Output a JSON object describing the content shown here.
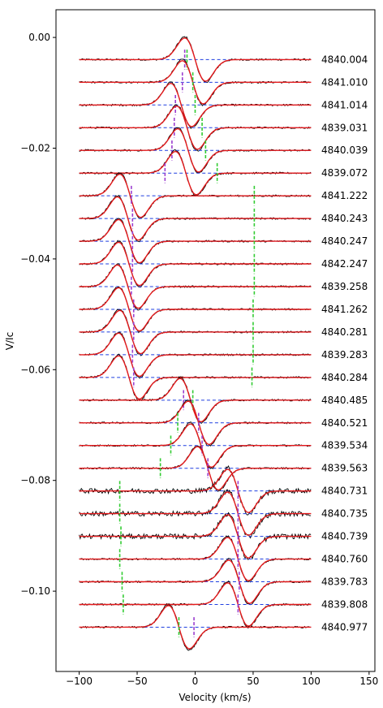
{
  "chart_data": {
    "type": "line",
    "title": "",
    "xlabel": "Velocity (km/s)",
    "ylabel": "V/Ic",
    "xlim": [
      -120,
      155
    ],
    "ylim": [
      -0.1145,
      0.005
    ],
    "xticks": [
      -100,
      -50,
      0,
      50,
      100,
      150
    ],
    "xtick_labels": [
      "−100",
      "−50",
      "0",
      "50",
      "100",
      "150"
    ],
    "yticks": [
      0.0,
      -0.02,
      -0.04,
      -0.06,
      -0.08,
      -0.1
    ],
    "ytick_labels": [
      "0.00",
      "−0.02",
      "−0.04",
      "−0.06",
      "−0.08",
      "−0.10"
    ],
    "grid": false,
    "legend": "none",
    "velocity_range": [
      -100,
      100
    ],
    "colors": {
      "observed": "#000000",
      "model": "#e41a1c",
      "zero_level": "#1f3fe0",
      "marker_green": "#33cc33",
      "marker_purple": "#9b3fd0"
    },
    "series": [
      {
        "label": "4840.004",
        "offset": -0.004,
        "center": 0,
        "amplitude": 0.0041,
        "noise": 0.00016,
        "markers": {
          "green": -7,
          "purple": -9
        }
      },
      {
        "label": "4841.010",
        "offset": -0.0081,
        "center": -2,
        "amplitude": 0.0041,
        "noise": 0.00016,
        "markers": {
          "green": -2,
          "purple": -11
        }
      },
      {
        "label": "4841.014",
        "offset": -0.0122,
        "center": -12,
        "amplitude": 0.0041,
        "noise": 0.00016,
        "markers": {
          "green": 0,
          "purple": -17
        }
      },
      {
        "label": "4839.031",
        "offset": -0.0163,
        "center": -7,
        "amplitude": 0.0041,
        "noise": 0.00016,
        "markers": {
          "green": 6,
          "purple": -18
        }
      },
      {
        "label": "4840.039",
        "offset": -0.0204,
        "center": -6,
        "amplitude": 0.0041,
        "noise": 0.00016,
        "markers": {
          "green": 9,
          "purple": -20
        }
      },
      {
        "label": "4839.072",
        "offset": -0.0245,
        "center": -8,
        "amplitude": 0.0041,
        "noise": 0.00016,
        "markers": {
          "green": 19,
          "purple": -26
        }
      },
      {
        "label": "4841.222",
        "offset": -0.0286,
        "center": -56,
        "amplitude": 0.0041,
        "noise": 0.00016,
        "markers": {
          "green": 51,
          "purple": -55
        }
      },
      {
        "label": "4840.243",
        "offset": -0.0327,
        "center": -58,
        "amplitude": 0.0041,
        "noise": 0.00016,
        "markers": {
          "green": 51,
          "purple": -54
        }
      },
      {
        "label": "4840.247",
        "offset": -0.0368,
        "center": -57,
        "amplitude": 0.0041,
        "noise": 0.00016,
        "markers": {
          "green": 51,
          "purple": -54
        }
      },
      {
        "label": "4842.247",
        "offset": -0.0409,
        "center": -57,
        "amplitude": 0.0041,
        "noise": 0.00016,
        "markers": {
          "green": 51,
          "purple": -54
        }
      },
      {
        "label": "4839.258",
        "offset": -0.045,
        "center": -58,
        "amplitude": 0.0041,
        "noise": 0.00016,
        "markers": {
          "green": 51,
          "purple": -55
        }
      },
      {
        "label": "4841.262",
        "offset": -0.0491,
        "center": -57,
        "amplitude": 0.0041,
        "noise": 0.00016,
        "markers": {
          "green": 50,
          "purple": -53
        }
      },
      {
        "label": "4840.281",
        "offset": -0.0532,
        "center": -56,
        "amplitude": 0.0041,
        "noise": 0.00016,
        "markers": {
          "green": 50,
          "purple": -53
        }
      },
      {
        "label": "4839.283",
        "offset": -0.0573,
        "center": -57,
        "amplitude": 0.0041,
        "noise": 0.00016,
        "markers": {
          "green": 50,
          "purple": -54
        }
      },
      {
        "label": "4840.284",
        "offset": -0.0614,
        "center": -57,
        "amplitude": 0.0041,
        "noise": 0.00016,
        "markers": {
          "green": 49,
          "purple": -53
        }
      },
      {
        "label": "4840.485",
        "offset": -0.0655,
        "center": -4,
        "amplitude": 0.0041,
        "noise": 0.00016,
        "markers": {
          "green": -2,
          "purple": -10
        }
      },
      {
        "label": "4840.521",
        "offset": -0.0696,
        "center": 3,
        "amplitude": 0.0041,
        "noise": 0.00016,
        "markers": {
          "green": -15,
          "purple": 3
        }
      },
      {
        "label": "4839.534",
        "offset": -0.0737,
        "center": 5,
        "amplitude": 0.0041,
        "noise": 0.00016,
        "markers": {
          "green": -21,
          "purple": 6
        }
      },
      {
        "label": "4839.563",
        "offset": -0.0778,
        "center": 11,
        "amplitude": 0.0041,
        "noise": 0.00016,
        "markers": {
          "green": -30,
          "purple": 11
        }
      },
      {
        "label": "4840.731",
        "offset": -0.0819,
        "center": 37,
        "amplitude": 0.0041,
        "noise": 0.00045,
        "markers": {
          "green": -65,
          "purple": 37
        }
      },
      {
        "label": "4840.735",
        "offset": -0.086,
        "center": 37,
        "amplitude": 0.0041,
        "noise": 0.00045,
        "markers": {
          "green": -65,
          "purple": 37
        }
      },
      {
        "label": "4840.739",
        "offset": -0.0901,
        "center": 37,
        "amplitude": 0.0041,
        "noise": 0.00045,
        "markers": {
          "green": -64,
          "purple": 37
        }
      },
      {
        "label": "4840.760",
        "offset": -0.0942,
        "center": 37,
        "amplitude": 0.0041,
        "noise": 0.00016,
        "markers": {
          "green": -65,
          "purple": 37
        }
      },
      {
        "label": "4839.783",
        "offset": -0.0983,
        "center": 38,
        "amplitude": 0.0041,
        "noise": 0.00016,
        "markers": {
          "green": -63,
          "purple": 38
        }
      },
      {
        "label": "4839.808",
        "offset": -0.1024,
        "center": 37,
        "amplitude": 0.0041,
        "noise": 0.00016,
        "markers": {
          "green": -62,
          "purple": 37
        }
      },
      {
        "label": "4840.977",
        "offset": -0.1065,
        "center": -14,
        "amplitude": 0.0041,
        "noise": 0.00016,
        "markers": {
          "green": -14,
          "purple": -1
        }
      }
    ]
  }
}
